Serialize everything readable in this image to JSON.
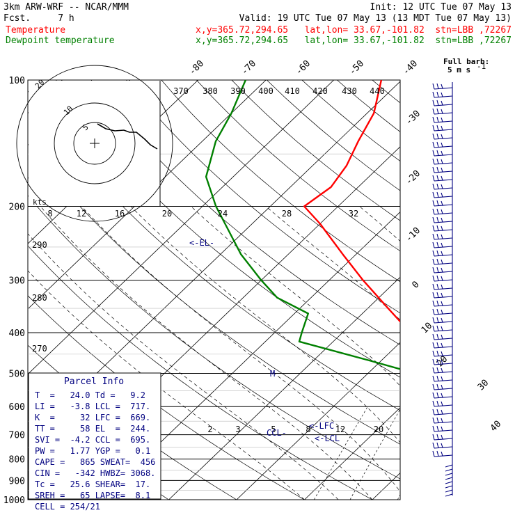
{
  "header": {
    "model": "3km ARW-WRF -- NCAR/MMM",
    "init": "Init: 12 UTC Tue 07 May 13",
    "fcst": "Fcst.     7 h",
    "valid": "Valid: 19 UTC Tue 07 May 13 (13 MDT Tue 07 May 13)",
    "temp_legend": "Temperature",
    "dew_legend": "Dewpoint temperature",
    "temp_loc": "x,y=365.72,294.65   lat,lon= 33.67,-101.82  stn=LBB ,72267",
    "dew_loc": "x,y=365.72,294.65   lat,lon= 33.67,-101.82  stn=LBB ,72267"
  },
  "barb_legend": {
    "line1": "Full barb:",
    "line2": "5 m s"
  },
  "parcel_info": {
    "title": "Parcel Info",
    "rows": [
      "T  =   24.0 Td =   9.2",
      "LI =   -3.8 LCL =  717.",
      "K  =     32 LFC =  669.",
      "TT =     58 EL  =  244.",
      "SVI =  -4.2 CCL =  695.",
      "PW =   1.77 YGP =   0.1",
      "CAPE =   865 SWEAT=  456",
      "CIN =   -342 HWBZ= 3068.",
      "Tc =   25.6 SHEAR=  17.",
      "SREH =   65 LAPSE=  8.1",
      "CELL = 254/21"
    ]
  },
  "level_labels": {
    "el": "<-EL-",
    "lfc": "<-LFC",
    "lcl": "<-LCL",
    "ccl": "CCL-",
    "m": "M"
  },
  "hodograph": {
    "kts_label": "kts",
    "ring_labels": [
      "5",
      "10",
      "20"
    ]
  },
  "chart_data": {
    "type": "line",
    "title": "",
    "xlabel": "",
    "ylabel": "",
    "pressure_levels": [
      100,
      200,
      300,
      400,
      500,
      600,
      700,
      800,
      900,
      1000
    ],
    "pressure_range": [
      100,
      1000
    ],
    "isotherm_labels": [
      "-80",
      "-70",
      "-60",
      "-50",
      "-40",
      "-30",
      "-20",
      "-10",
      "0",
      "10",
      "20",
      "30",
      "40"
    ],
    "theta_e_labels": [
      "370",
      "380",
      "390",
      "400",
      "410",
      "420",
      "430",
      "440"
    ],
    "theta_e_side_labels": [
      "290",
      "280",
      "270"
    ],
    "mixing_ratio_labels": [
      "2",
      "3",
      "5",
      "8",
      "12",
      "20"
    ],
    "inset_ticks": [
      "8",
      "12",
      "16",
      "20",
      "24",
      "28",
      "32"
    ],
    "series": [
      {
        "name": "Temperature",
        "color": "#ff0000",
        "points": [
          [
            900,
            27.5
          ],
          [
            855,
            22
          ],
          [
            820,
            19
          ],
          [
            800,
            18
          ],
          [
            760,
            13
          ],
          [
            700,
            9
          ],
          [
            660,
            4.5
          ],
          [
            600,
            -1
          ],
          [
            540,
            -6
          ],
          [
            500,
            -10
          ],
          [
            450,
            -15
          ],
          [
            400,
            -20
          ],
          [
            350,
            -27
          ],
          [
            300,
            -35
          ],
          [
            260,
            -42
          ],
          [
            220,
            -50
          ],
          [
            200,
            -55
          ],
          [
            180,
            -54
          ],
          [
            160,
            -55
          ],
          [
            140,
            -57
          ],
          [
            120,
            -59
          ],
          [
            100,
            -63
          ]
        ]
      },
      {
        "name": "Dewpoint temperature",
        "color": "#008000",
        "points": [
          [
            900,
            10
          ],
          [
            860,
            10
          ],
          [
            820,
            9
          ],
          [
            800,
            7
          ],
          [
            760,
            6
          ],
          [
            700,
            4
          ],
          [
            640,
            3
          ],
          [
            600,
            1
          ],
          [
            560,
            -5
          ],
          [
            520,
            -10
          ],
          [
            500,
            -13
          ],
          [
            465,
            -22
          ],
          [
            420,
            -35
          ],
          [
            400,
            -36
          ],
          [
            360,
            -38
          ],
          [
            330,
            -45
          ],
          [
            300,
            -50
          ],
          [
            260,
            -57
          ],
          [
            220,
            -64
          ],
          [
            200,
            -68
          ],
          [
            170,
            -74
          ],
          [
            140,
            -78
          ],
          [
            120,
            -80
          ],
          [
            100,
            -83
          ]
        ]
      }
    ]
  },
  "colors": {
    "temperature": "#ff0000",
    "dewpoint": "#008000",
    "grid": "#000000",
    "barbs": "#000080",
    "labels": "#000080"
  }
}
